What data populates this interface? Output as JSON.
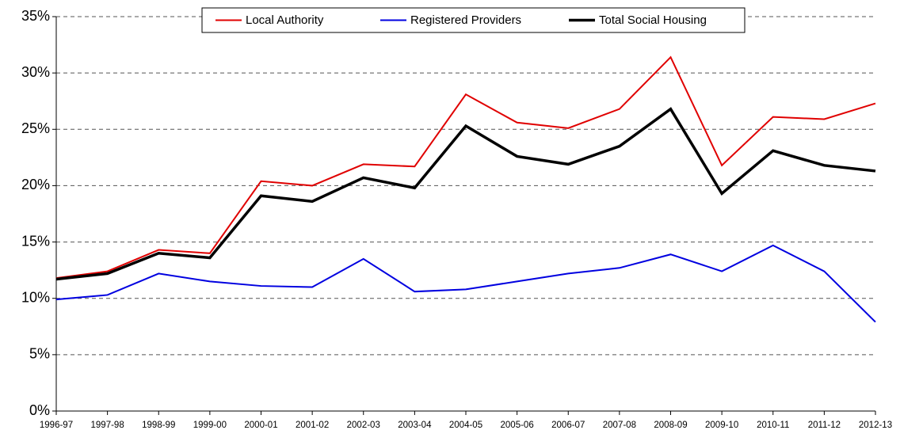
{
  "chart_data": {
    "type": "line",
    "categories": [
      "1996-97",
      "1997-98",
      "1998-99",
      "1999-00",
      "2000-01",
      "2001-02",
      "2002-03",
      "2003-04",
      "2004-05",
      "2005-06",
      "2006-07",
      "2007-08",
      "2008-09",
      "2009-10",
      "2010-11",
      "2011-12",
      "2012-13"
    ],
    "series": [
      {
        "name": "Local Authority",
        "color": "#e00000",
        "line_width": 2,
        "values": [
          11.8,
          12.4,
          14.3,
          14.0,
          20.4,
          20.0,
          21.9,
          21.7,
          28.1,
          25.6,
          25.1,
          26.8,
          31.4,
          21.8,
          26.1,
          25.9,
          27.3
        ]
      },
      {
        "name": "Registered Providers",
        "color": "#0000e0",
        "line_width": 2,
        "values": [
          9.9,
          10.3,
          12.2,
          11.5,
          11.1,
          11.0,
          13.5,
          10.6,
          10.8,
          11.5,
          12.2,
          12.7,
          13.9,
          12.4,
          14.7,
          12.4,
          7.9
        ]
      },
      {
        "name": "Total Social Housing",
        "color": "#000000",
        "line_width": 3.5,
        "values": [
          11.7,
          12.2,
          14.0,
          13.6,
          19.1,
          18.6,
          20.7,
          19.8,
          25.3,
          22.6,
          21.9,
          23.5,
          26.8,
          19.3,
          23.1,
          21.8,
          21.3
        ]
      }
    ],
    "ylim": [
      0,
      35
    ],
    "yticks": [
      {
        "value": 0,
        "label": "0%"
      },
      {
        "value": 5,
        "label": "5%"
      },
      {
        "value": 10,
        "label": "10%"
      },
      {
        "value": 15,
        "label": "15%"
      },
      {
        "value": 20,
        "label": "20%"
      },
      {
        "value": 25,
        "label": "25%"
      },
      {
        "value": 30,
        "label": "30%"
      },
      {
        "value": 35,
        "label": "35%"
      }
    ],
    "grid": true,
    "legend": "upper center"
  }
}
